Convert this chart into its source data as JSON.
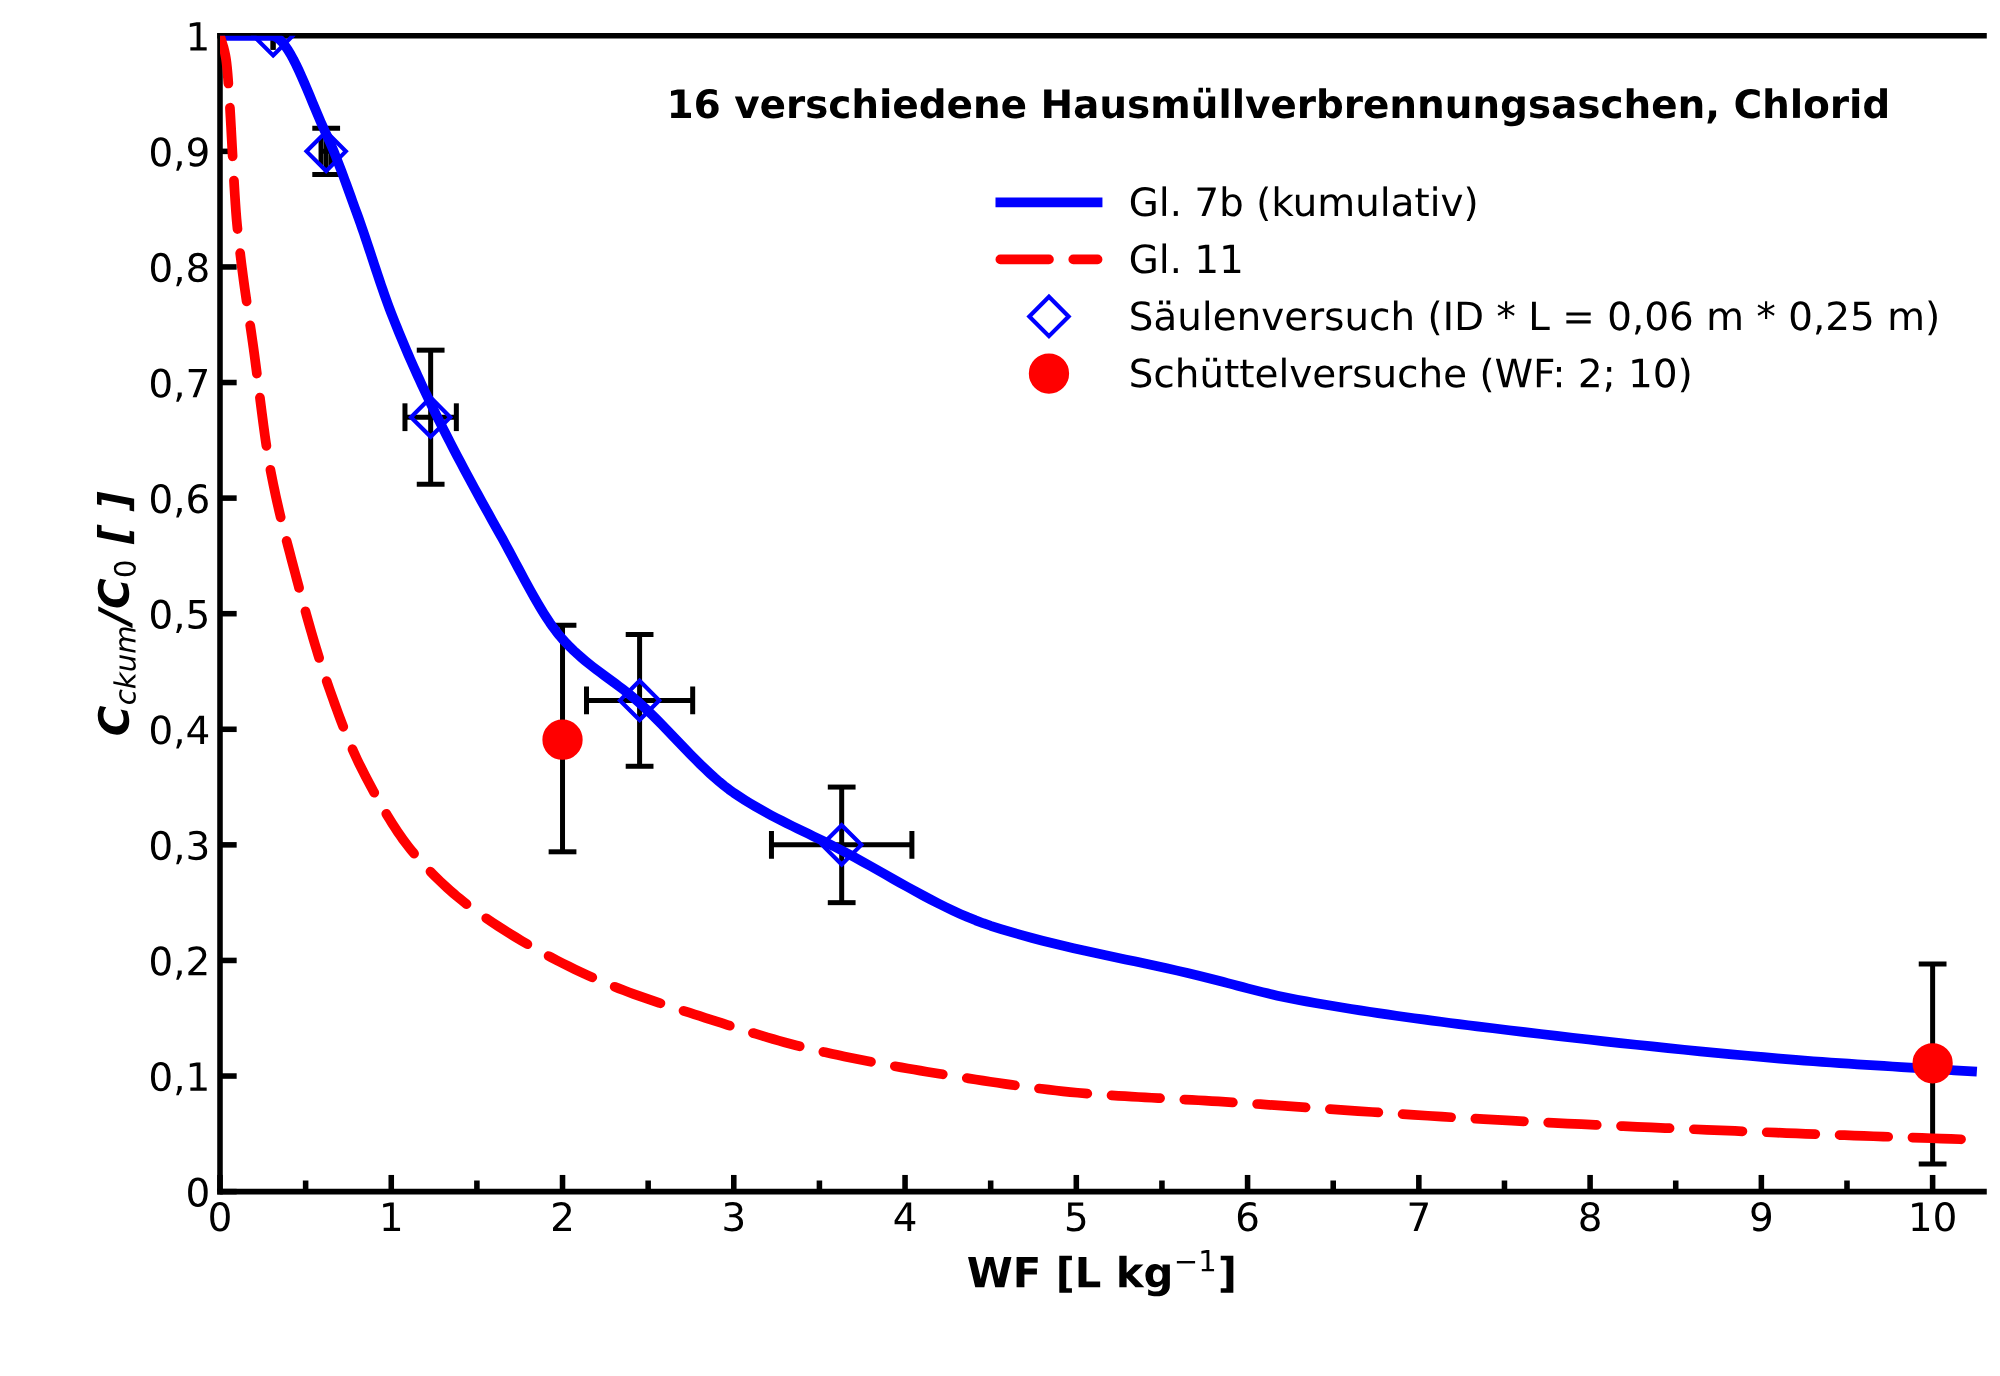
{
  "chart_data": {
    "type": "line",
    "title": "16 verschiedene Hausmüllverbrennungsaschen, Chlorid",
    "xlabel": "WF [L kg$^{−1}$]",
    "ylabel": "C$_{ckum}$/C$_{0}$ [ ]",
    "xlim": [
      0,
      10.3
    ],
    "ylim": [
      0,
      1
    ],
    "xticks": [
      0,
      {
        "value": 0.5,
        "label": null
      },
      1,
      {
        "value": 1.5,
        "label": null
      },
      2,
      {
        "value": 2.5,
        "label": null
      },
      3,
      {
        "value": 3.5,
        "label": null
      },
      4,
      {
        "value": 4.5,
        "label": null
      },
      5,
      {
        "value": 5.5,
        "label": null
      },
      6,
      {
        "value": 6.5,
        "label": null
      },
      7,
      {
        "value": 7.5,
        "label": null
      },
      8,
      {
        "value": 8.5,
        "label": null
      },
      9,
      {
        "value": 9.5,
        "label": null
      },
      10
    ],
    "yticks": [
      0,
      {
        "value": 0.1,
        "label": "0,1"
      },
      {
        "value": 0.2,
        "label": "0,2"
      },
      {
        "value": 0.3,
        "label": "0,3"
      },
      {
        "value": 0.4,
        "label": "0,4"
      },
      {
        "value": 0.5,
        "label": "0,5"
      },
      {
        "value": 0.6,
        "label": "0,6"
      },
      {
        "value": 0.7,
        "label": "0,7"
      },
      {
        "value": 0.8,
        "label": "0,8"
      },
      {
        "value": 0.9,
        "label": "0,9"
      },
      1
    ],
    "grid": false,
    "legend": "top right",
    "series": [
      {
        "name": "Gl. 7b (kumulativ)",
        "color": "#0000ff",
        "line_style": "solid",
        "marker": "none",
        "x": [
          0,
          0.3,
          0.62,
          0.8,
          1.0,
          1.22,
          1.63,
          2.0,
          2.44,
          3.0,
          3.62,
          4.5,
          5.71,
          6.29,
          7.34,
          9.2,
          10.23
        ],
        "values": [
          1,
          1.0,
          0.915,
          0.846,
          0.76,
          0.685,
          0.57,
          0.478,
          0.424,
          0.345,
          0.296,
          0.23,
          0.187,
          0.166,
          0.143,
          0.114,
          0.104
        ]
      },
      {
        "name": "Gl. 11",
        "color": "#ff0000",
        "line_style": "dashed",
        "marker": "none",
        "x": [
          0,
          0.035,
          0.1,
          0.2,
          0.29,
          0.43,
          0.62,
          0.82,
          1.13,
          1.52,
          2.21,
          2.8,
          3.46,
          4.2,
          5.05,
          5.83,
          7.46,
          9.09,
          10.22
        ],
        "values": [
          1,
          0.98,
          0.836,
          0.725,
          0.628,
          0.54,
          0.443,
          0.368,
          0.293,
          0.24,
          0.183,
          0.152,
          0.123,
          0.102,
          0.085,
          0.078,
          0.062,
          0.051,
          0.045
        ]
      },
      {
        "name": "Säulenversuch (ID * L = 0,06 m * 0,25 m)",
        "type": "scatter",
        "color": "#0000ff",
        "marker": "diamond",
        "x": [
          0.31,
          0.62,
          1.23,
          2.45,
          3.63
        ],
        "values": [
          1.0,
          0.9,
          0.67,
          0.425,
          0.3
        ],
        "errors": [
          null,
          0.02,
          0.058,
          0.057,
          0.05
        ],
        "xerrors": [
          null,
          0.03,
          0.15,
          0.31,
          0.41
        ]
      },
      {
        "name": "Schüttelversuche (WF: 2; 10)",
        "type": "scatter",
        "color": "#ff0000",
        "marker": "circle",
        "x": [
          2,
          10
        ],
        "values": [
          0.391,
          0.111
        ],
        "errors": [
          [
            0.294,
            0.49
          ],
          [
            0.024,
            0.197
          ]
        ]
      }
    ]
  }
}
